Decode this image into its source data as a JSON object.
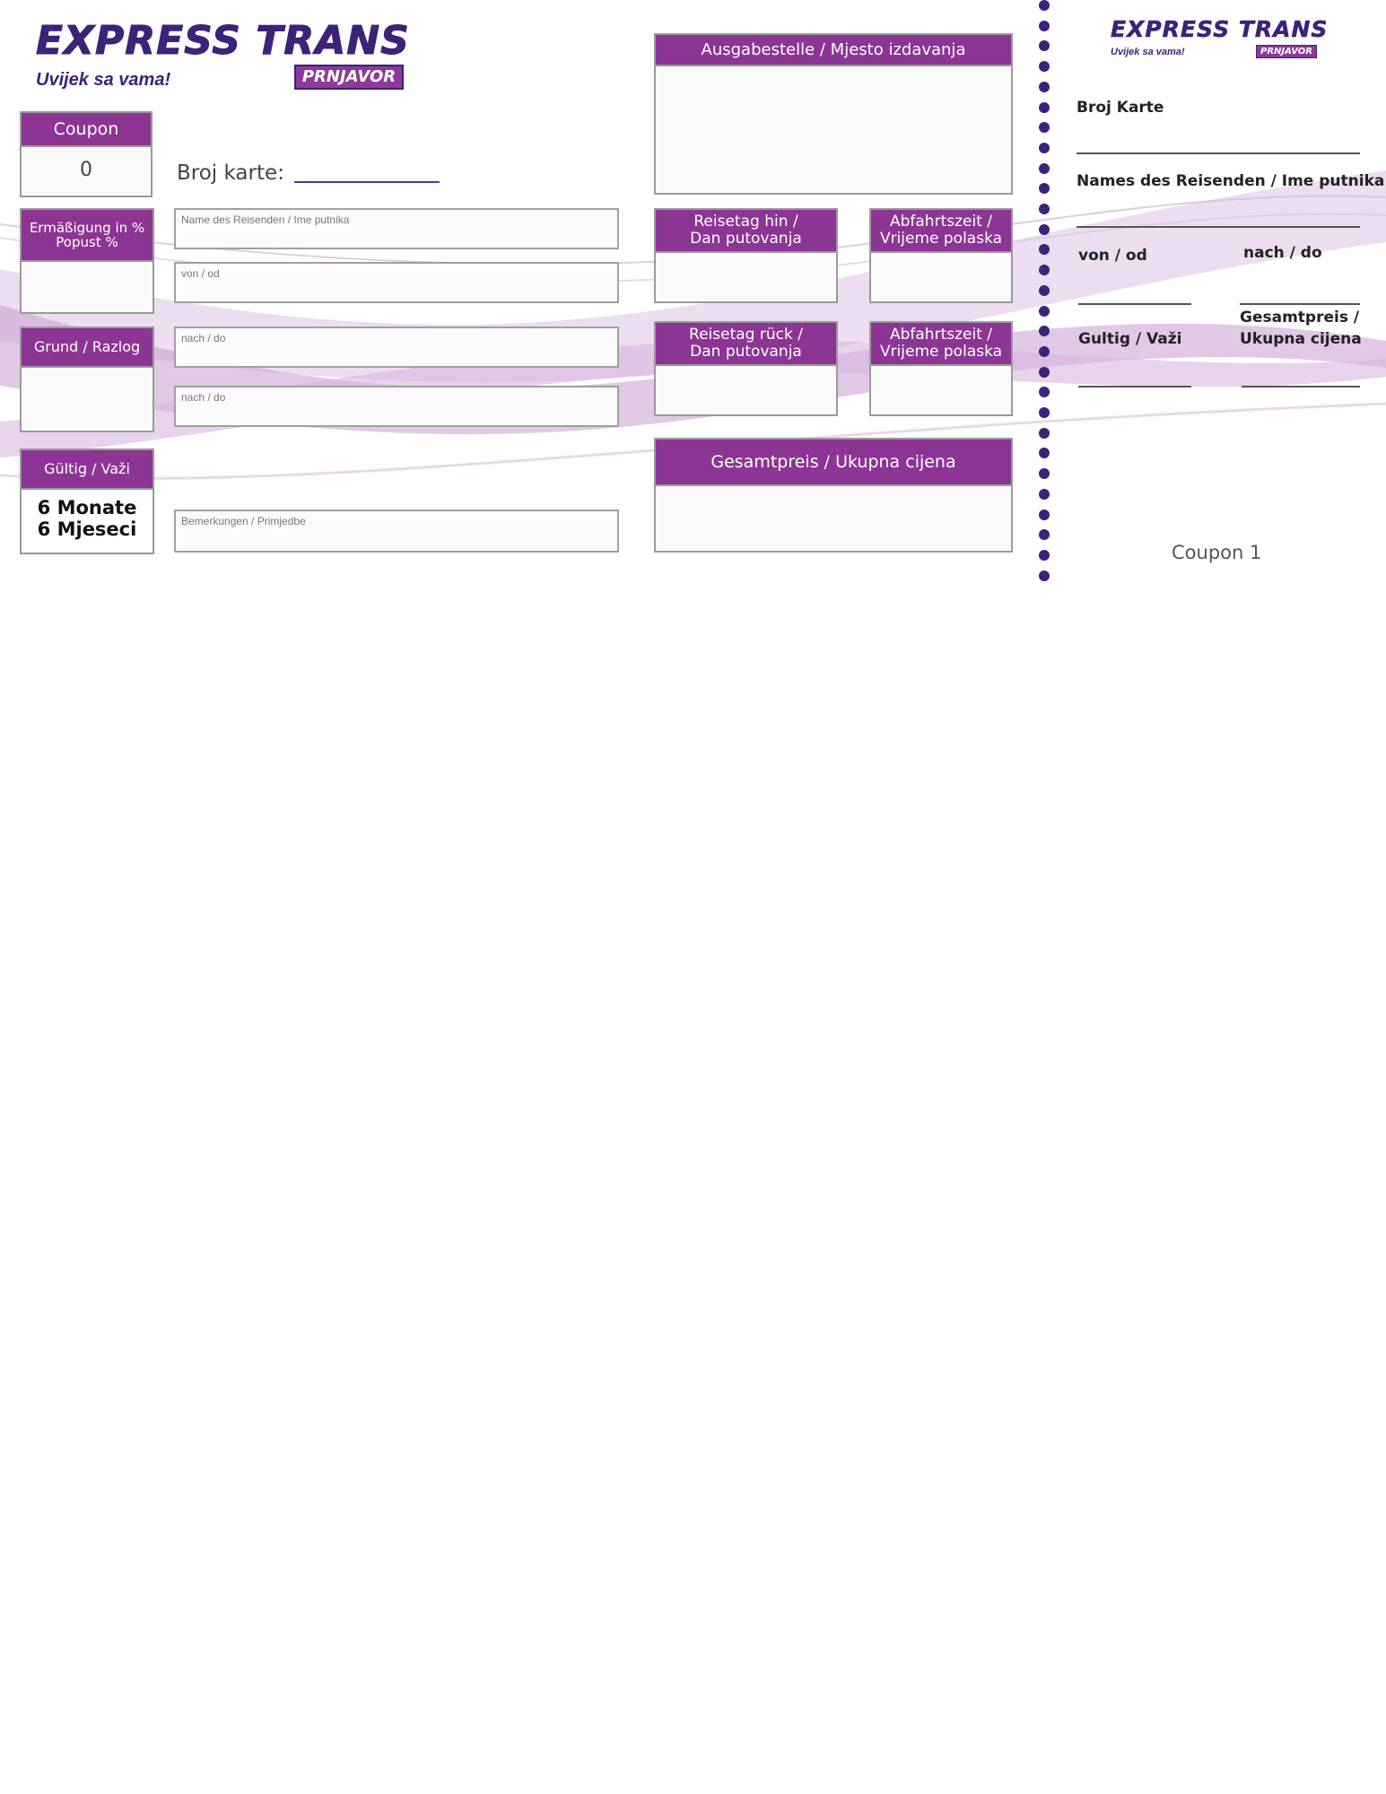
{
  "brand": {
    "name": "EXPRESS TRANS",
    "tagline": "Uvijek sa vama!",
    "city": "PRNJAVOR",
    "primary_color": "#8c3595",
    "dark_color": "#3d2279"
  },
  "left": {
    "coupon_title": "Coupon",
    "coupon_value": "0",
    "discount_title": "Ermäßigung in % Popust %",
    "reason_title": "Grund / Razlog",
    "valid_title": "Gültig / Važi",
    "valid_value_line1": "6 Monate",
    "valid_value_line2": "6 Mjeseci"
  },
  "center": {
    "ticket_number_label": "Broj karte:",
    "passenger_name": "Name des Reisenden / Ime putnika",
    "from": "von / od",
    "to_1": "nach / do",
    "to_2": "nach / do",
    "remarks": "Bemerkungen / Primjedbe"
  },
  "right": {
    "issue_place": "Ausgabestelle / Mjesto izdavanja",
    "travel_day_out_1": "Reisetag hin /",
    "travel_day_out_2": "Dan putovanja",
    "departure_time_1_a": "Abfahrtszeit /",
    "departure_time_1_b": "Vrijeme polaska",
    "travel_day_back_1": "Reisetag rück /",
    "travel_day_back_2": "Dan putovanja",
    "departure_time_2_a": "Abfahrtszeit /",
    "departure_time_2_b": "Vrijeme polaska",
    "total_price": "Gesamtpreis / Ukupna cijena"
  },
  "stub": {
    "ticket_number": "Broj Karte",
    "passenger_name": "Names des Reisenden / Ime putnika",
    "from": "von / od",
    "to": "nach / do",
    "total_price_1": "Gesamtpreis /",
    "total_price_2": "Ukupna cijena",
    "valid": "Gultig / Važi",
    "coupon": "Coupon 1"
  }
}
